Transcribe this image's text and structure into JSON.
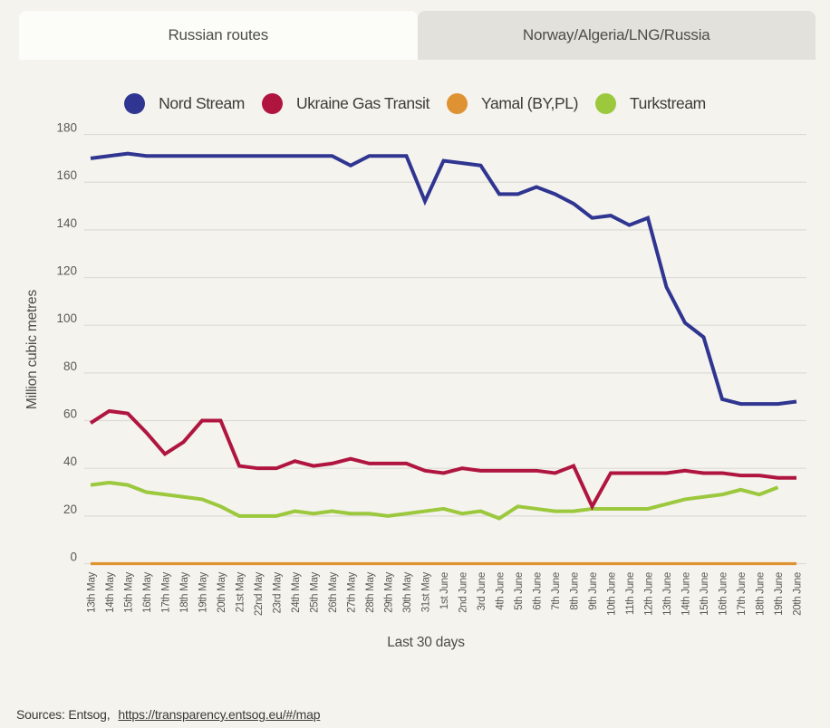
{
  "tabs": [
    {
      "label": "Russian routes",
      "active": true
    },
    {
      "label": "Norway/Algeria/LNG/Russia",
      "active": false
    }
  ],
  "footer": {
    "sources_label": "Sources: Entsog,",
    "link": "https://transparency.entsog.eu/#/map"
  },
  "colors": {
    "background": "#f4f3ee",
    "active_tab": "#fcfcf9",
    "inactive_tab": "#e2e1db",
    "gridline": "#dcdbd5",
    "tick_text": "#5a5a54"
  },
  "chart_data": {
    "type": "line",
    "title": "",
    "xlabel": "Last 30 days",
    "ylabel": "Million cubic metres",
    "ylim": [
      0,
      180
    ],
    "ytick_step": 20,
    "grid": "horizontal",
    "legend_position": "top",
    "categories": [
      "13th May",
      "14th May",
      "15th May",
      "16th May",
      "17th May",
      "18th May",
      "19th May",
      "20th May",
      "21st May",
      "22nd May",
      "23rd May",
      "24th May",
      "25th May",
      "26th May",
      "27th May",
      "28th May",
      "29th May",
      "30th May",
      "31st May",
      "1st June",
      "2nd June",
      "3rd June",
      "4th June",
      "5th June",
      "6th June",
      "7th June",
      "8th June",
      "9th June",
      "10th June",
      "11th June",
      "12th June",
      "13th June",
      "14th June",
      "15th June",
      "16th June",
      "17th June",
      "18th June",
      "19th June",
      "20th June"
    ],
    "series": [
      {
        "name": "Nord Stream",
        "color": "#2f3590",
        "values": [
          170,
          171,
          172,
          171,
          171,
          171,
          171,
          171,
          171,
          171,
          171,
          171,
          171,
          171,
          167,
          171,
          171,
          171,
          152,
          169,
          168,
          167,
          155,
          155,
          158,
          155,
          151,
          145,
          146,
          142,
          145,
          116,
          101,
          95,
          69,
          67,
          67,
          67,
          68
        ]
      },
      {
        "name": "Ukraine Gas Transit",
        "color": "#b01540",
        "values": [
          59,
          64,
          63,
          55,
          46,
          51,
          60,
          60,
          41,
          40,
          40,
          43,
          41,
          42,
          44,
          42,
          42,
          42,
          39,
          38,
          40,
          39,
          39,
          39,
          39,
          38,
          41,
          24,
          38,
          38,
          38,
          38,
          39,
          38,
          38,
          37,
          37,
          36,
          36
        ]
      },
      {
        "name": "Yamal (BY,PL)",
        "color": "#df9232",
        "values": [
          0,
          0,
          0,
          0,
          0,
          0,
          0,
          0,
          0,
          0,
          0,
          0,
          0,
          0,
          0,
          0,
          0,
          0,
          0,
          0,
          0,
          0,
          0,
          0,
          0,
          0,
          0,
          0,
          0,
          0,
          0,
          0,
          0,
          0,
          0,
          0,
          0,
          0,
          0
        ]
      },
      {
        "name": "Turkstream",
        "color": "#9cc83d",
        "values": [
          33,
          34,
          33,
          30,
          29,
          28,
          27,
          24,
          20,
          20,
          20,
          22,
          21,
          22,
          21,
          21,
          20,
          21,
          22,
          23,
          21,
          22,
          19,
          24,
          23,
          22,
          22,
          23,
          23,
          23,
          23,
          25,
          27,
          28,
          29,
          31,
          29,
          32,
          null
        ]
      }
    ]
  }
}
